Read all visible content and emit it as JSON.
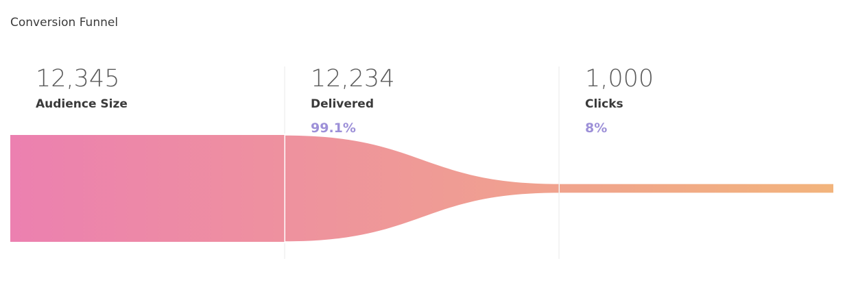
{
  "chart_data": {
    "type": "funnel",
    "title": "Conversion Funnel",
    "categories": [
      "Audience Size",
      "Delivered",
      "Clicks"
    ],
    "values": [
      12345,
      12234,
      1000
    ],
    "value_labels": [
      "12,345",
      "12,234",
      "1,000"
    ],
    "percentages": [
      null,
      99.1,
      8
    ],
    "percentage_labels": [
      null,
      "99.1%",
      "8%"
    ],
    "colors": [
      "#ec80b0",
      "#f2b47c"
    ],
    "percentage_color": "#9d90d8"
  }
}
